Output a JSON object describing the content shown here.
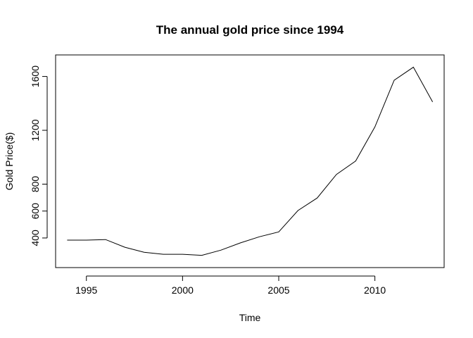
{
  "chart_data": {
    "type": "line",
    "title": "The annual gold price since 1994",
    "xlabel": "Time",
    "ylabel": "Gold Price($)",
    "xlim": [
      1993.4,
      2013.6
    ],
    "ylim": [
      180,
      1760
    ],
    "x_ticks": [
      1995,
      2000,
      2005,
      2010
    ],
    "y_ticks": [
      400,
      600,
      800,
      1200,
      1600
    ],
    "grid": false,
    "legend": "none",
    "line_color": "#000000",
    "series": [
      {
        "x": [
          1994,
          1995,
          1996,
          1997,
          1998,
          1999,
          2000,
          2001,
          2002,
          2003,
          2004,
          2005,
          2006,
          2007,
          2008,
          2009,
          2010,
          2011,
          2012,
          2013
        ],
        "y": [
          384,
          384,
          388,
          331,
          294,
          279,
          279,
          271,
          310,
          363,
          409,
          445,
          604,
          697,
          872,
          972,
          1225,
          1572,
          1669,
          1411
        ]
      }
    ]
  }
}
